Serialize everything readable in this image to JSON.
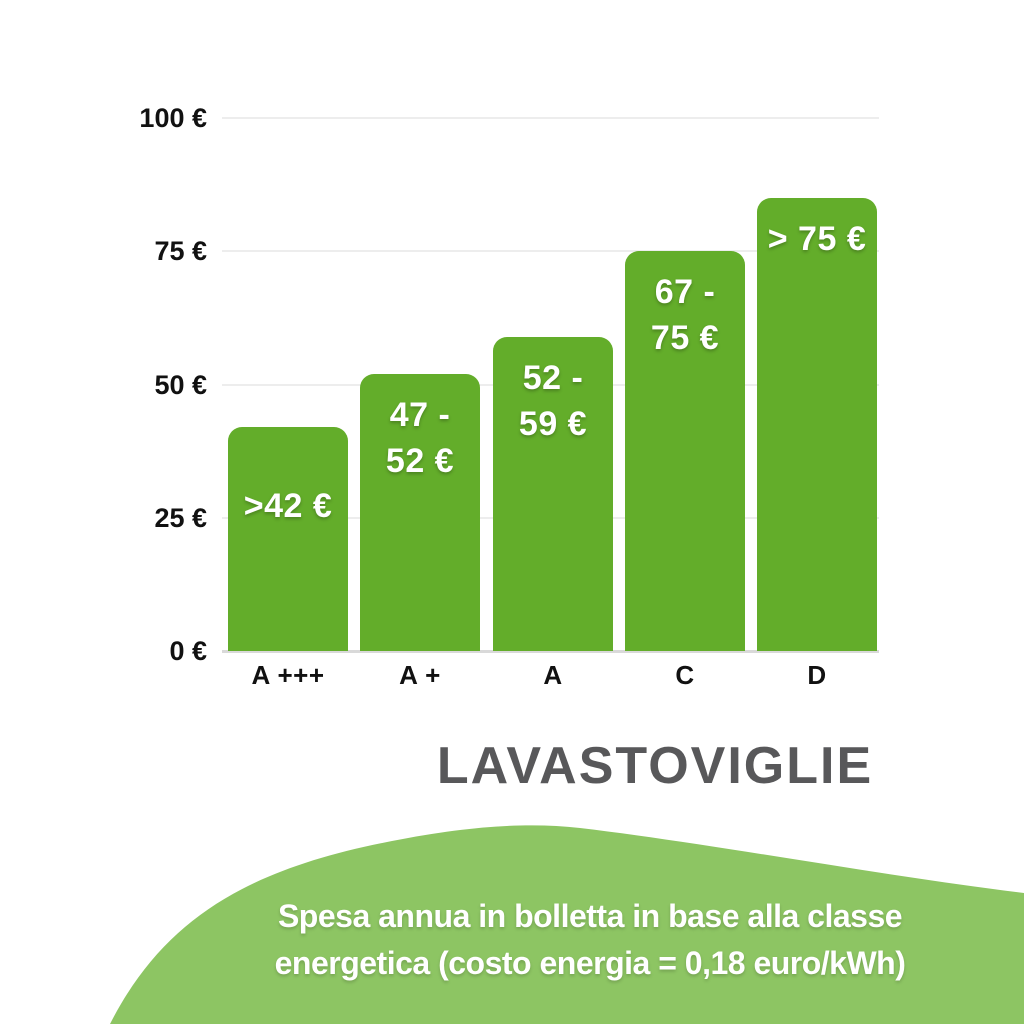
{
  "chart": {
    "title": "LAVASTOVIGLIE",
    "y_max": 100,
    "y_ticks": [
      {
        "value": 100,
        "label": "100 €"
      },
      {
        "value": 75,
        "label": "75 €"
      },
      {
        "value": 50,
        "label": "50 €"
      },
      {
        "value": 25,
        "label": "25 €"
      },
      {
        "value": 0,
        "label": "0 €"
      }
    ],
    "bars": [
      {
        "category": "A +++",
        "value": 42,
        "label_lines": [
          ">42 €"
        ]
      },
      {
        "category": "A +",
        "value": 52,
        "label_lines": [
          "47 -",
          "52 €"
        ]
      },
      {
        "category": "A",
        "value": 59,
        "label_lines": [
          "52 -",
          "59 €"
        ]
      },
      {
        "category": "C",
        "value": 75,
        "label_lines": [
          "67 -",
          "75 €"
        ]
      },
      {
        "category": "D",
        "value": 85,
        "label_lines": [
          "> 75 €"
        ]
      }
    ]
  },
  "chart_data": {
    "type": "bar",
    "title": "LAVASTOVIGLIE",
    "categories": [
      "A +++",
      "A +",
      "A",
      "C",
      "D"
    ],
    "values": [
      42,
      52,
      59,
      75,
      85
    ],
    "value_labels": [
      ">42 €",
      "47 - 52 €",
      "52 - 59 €",
      "67 - 75 €",
      "> 75 €"
    ],
    "xlabel": "",
    "ylabel": "",
    "ylim": [
      0,
      100
    ],
    "y_tick_labels": [
      "0 €",
      "25 €",
      "50 €",
      "75 €",
      "100 €"
    ],
    "grid": true,
    "legend": false,
    "bar_color": "#63ad2a",
    "caption": "Spesa annua in bolletta in base alla classe energetica (costo energia = 0,18 euro/kWh)"
  },
  "footer": {
    "caption_line1": "Spesa annua in bolletta in base alla classe",
    "caption_line2": "energetica (costo energia = 0,18 euro/kWh)"
  },
  "colors": {
    "bar": "#63ad2a",
    "wave": "#8dc563",
    "title": "#58585a",
    "gridline": "#ededed",
    "baseline": "#d9d9d9",
    "axis_text": "#111111",
    "bar_label_text": "#ffffff"
  }
}
